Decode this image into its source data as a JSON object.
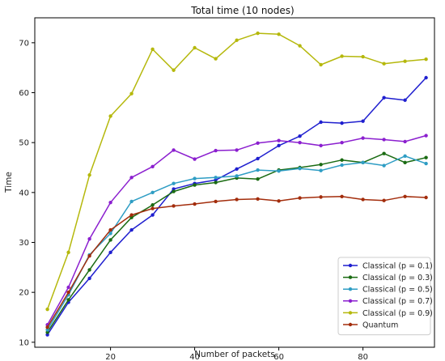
{
  "chart_data": {
    "type": "line",
    "title": "Total time (10 nodes)",
    "xlabel": "Number of packets",
    "ylabel": "Time",
    "xlim": [
      2,
      97
    ],
    "ylim": [
      9,
      75
    ],
    "xticks": [
      20,
      40,
      60,
      80
    ],
    "yticks": [
      10,
      20,
      30,
      40,
      50,
      60,
      70
    ],
    "grid": false,
    "legend_position": "lower-right",
    "x": [
      5,
      10,
      15,
      20,
      25,
      30,
      35,
      40,
      45,
      50,
      55,
      60,
      65,
      70,
      75,
      80,
      85,
      90,
      95
    ],
    "series": [
      {
        "name": "Classical (p = 0.1)",
        "color": "#1f1fcf",
        "values": [
          11.5,
          18.0,
          22.8,
          28.0,
          32.5,
          35.5,
          40.7,
          41.8,
          42.5,
          44.7,
          46.8,
          49.4,
          51.3,
          54.1,
          53.9,
          54.3,
          59.0,
          58.5,
          63.0
        ]
      },
      {
        "name": "Classical (p = 0.3)",
        "color": "#1a6b12",
        "values": [
          12.0,
          18.5,
          24.5,
          30.5,
          35.0,
          37.5,
          40.2,
          41.5,
          42.0,
          42.9,
          42.7,
          44.5,
          45.0,
          45.6,
          46.5,
          46.0,
          47.8,
          46.0,
          47.0
        ]
      },
      {
        "name": "Classical (p = 0.5)",
        "color": "#2e9dc4",
        "values": [
          12.5,
          19.5,
          27.5,
          31.8,
          38.2,
          40.0,
          41.8,
          42.8,
          43.0,
          43.3,
          44.5,
          44.3,
          44.8,
          44.4,
          45.5,
          46.0,
          45.4,
          47.3,
          45.8
        ]
      },
      {
        "name": "Classical (p = 0.7)",
        "color": "#8b1fcf",
        "values": [
          13.5,
          21.0,
          30.7,
          38.0,
          43.0,
          45.2,
          48.5,
          46.7,
          48.4,
          48.5,
          49.9,
          50.4,
          50.0,
          49.4,
          50.0,
          50.9,
          50.6,
          50.2,
          51.4
        ]
      },
      {
        "name": "Classical (p = 0.9)",
        "color": "#b5b80c",
        "values": [
          16.6,
          28.0,
          43.5,
          55.3,
          59.8,
          68.7,
          64.5,
          69.0,
          66.8,
          70.5,
          71.9,
          71.7,
          69.4,
          65.6,
          67.3,
          67.2,
          65.8,
          66.3,
          66.7
        ]
      },
      {
        "name": "Quantum",
        "color": "#a32d0c",
        "values": [
          13.0,
          20.0,
          27.3,
          32.5,
          35.5,
          36.8,
          37.3,
          37.7,
          38.2,
          38.6,
          38.7,
          38.3,
          38.9,
          39.1,
          39.2,
          38.6,
          38.4,
          39.2,
          39.0
        ]
      }
    ]
  }
}
